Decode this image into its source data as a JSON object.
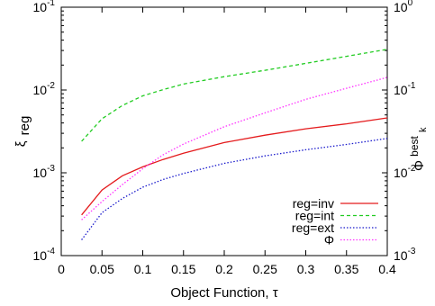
{
  "chart_data": {
    "type": "line",
    "xlabel": "Object Function, τ",
    "ylabel_left": {
      "main": "ξ",
      "sub": "reg"
    },
    "ylabel_right": {
      "main": "Φ",
      "sup": "best",
      "sub": "k"
    },
    "x_ticks": [
      "0",
      "0.05",
      "0.1",
      "0.15",
      "0.2",
      "0.25",
      "0.3",
      "0.35",
      "0.4"
    ],
    "x_tick_values": [
      0,
      0.05,
      0.1,
      0.15,
      0.2,
      0.25,
      0.3,
      0.35,
      0.4
    ],
    "xlim": [
      0,
      0.4
    ],
    "y_left": {
      "scale": "log",
      "ylim": [
        0.0001,
        0.1
      ],
      "ticks": [
        {
          "value": 0.0001,
          "base": "10",
          "exp": "-4"
        },
        {
          "value": 0.001,
          "base": "10",
          "exp": "-3"
        },
        {
          "value": 0.01,
          "base": "10",
          "exp": "-2"
        },
        {
          "value": 0.1,
          "base": "10",
          "exp": "-1"
        }
      ]
    },
    "y_right": {
      "scale": "log",
      "ylim": [
        0.001,
        1
      ],
      "ticks": [
        {
          "value": 0.001,
          "base": "10",
          "exp": "-3"
        },
        {
          "value": 0.01,
          "base": "10",
          "exp": "-2"
        },
        {
          "value": 0.1,
          "base": "10",
          "exp": "-1"
        },
        {
          "value": 1,
          "base": "10",
          "exp": "0"
        }
      ]
    },
    "grid": false,
    "legend_position": "bottom-right",
    "series": [
      {
        "name": "reg=inv",
        "axis": "left",
        "color": "#e41a1c",
        "dash": "solid",
        "x": [
          0.025,
          0.05,
          0.075,
          0.1,
          0.125,
          0.15,
          0.2,
          0.25,
          0.3,
          0.35,
          0.4
        ],
        "y": [
          0.00031,
          0.00062,
          0.00092,
          0.00118,
          0.00145,
          0.00172,
          0.00232,
          0.00285,
          0.0034,
          0.0039,
          0.0046
        ]
      },
      {
        "name": "reg=int",
        "axis": "left",
        "color": "#22cc22",
        "dash": "dashed",
        "x": [
          0.025,
          0.05,
          0.075,
          0.1,
          0.125,
          0.15,
          0.2,
          0.25,
          0.3,
          0.35,
          0.4
        ],
        "y": [
          0.0024,
          0.0045,
          0.0065,
          0.0085,
          0.0101,
          0.0118,
          0.0145,
          0.0173,
          0.021,
          0.0255,
          0.031
        ]
      },
      {
        "name": "reg=ext",
        "axis": "left",
        "color": "#1a1acc",
        "dash": "dotted",
        "x": [
          0.025,
          0.05,
          0.075,
          0.1,
          0.125,
          0.15,
          0.2,
          0.25,
          0.3,
          0.35,
          0.4
        ],
        "y": [
          0.000155,
          0.00033,
          0.00049,
          0.00067,
          0.00083,
          0.00098,
          0.0013,
          0.0016,
          0.0019,
          0.0022,
          0.0026
        ]
      },
      {
        "name": "Φ",
        "axis": "right",
        "color": "#ff33ff",
        "dash": "dotted",
        "x": [
          0.025,
          0.05,
          0.075,
          0.1,
          0.125,
          0.15,
          0.2,
          0.25,
          0.3,
          0.35,
          0.4
        ],
        "y": [
          0.0027,
          0.0045,
          0.0072,
          0.0112,
          0.0165,
          0.0222,
          0.036,
          0.053,
          0.077,
          0.105,
          0.142
        ]
      }
    ]
  }
}
